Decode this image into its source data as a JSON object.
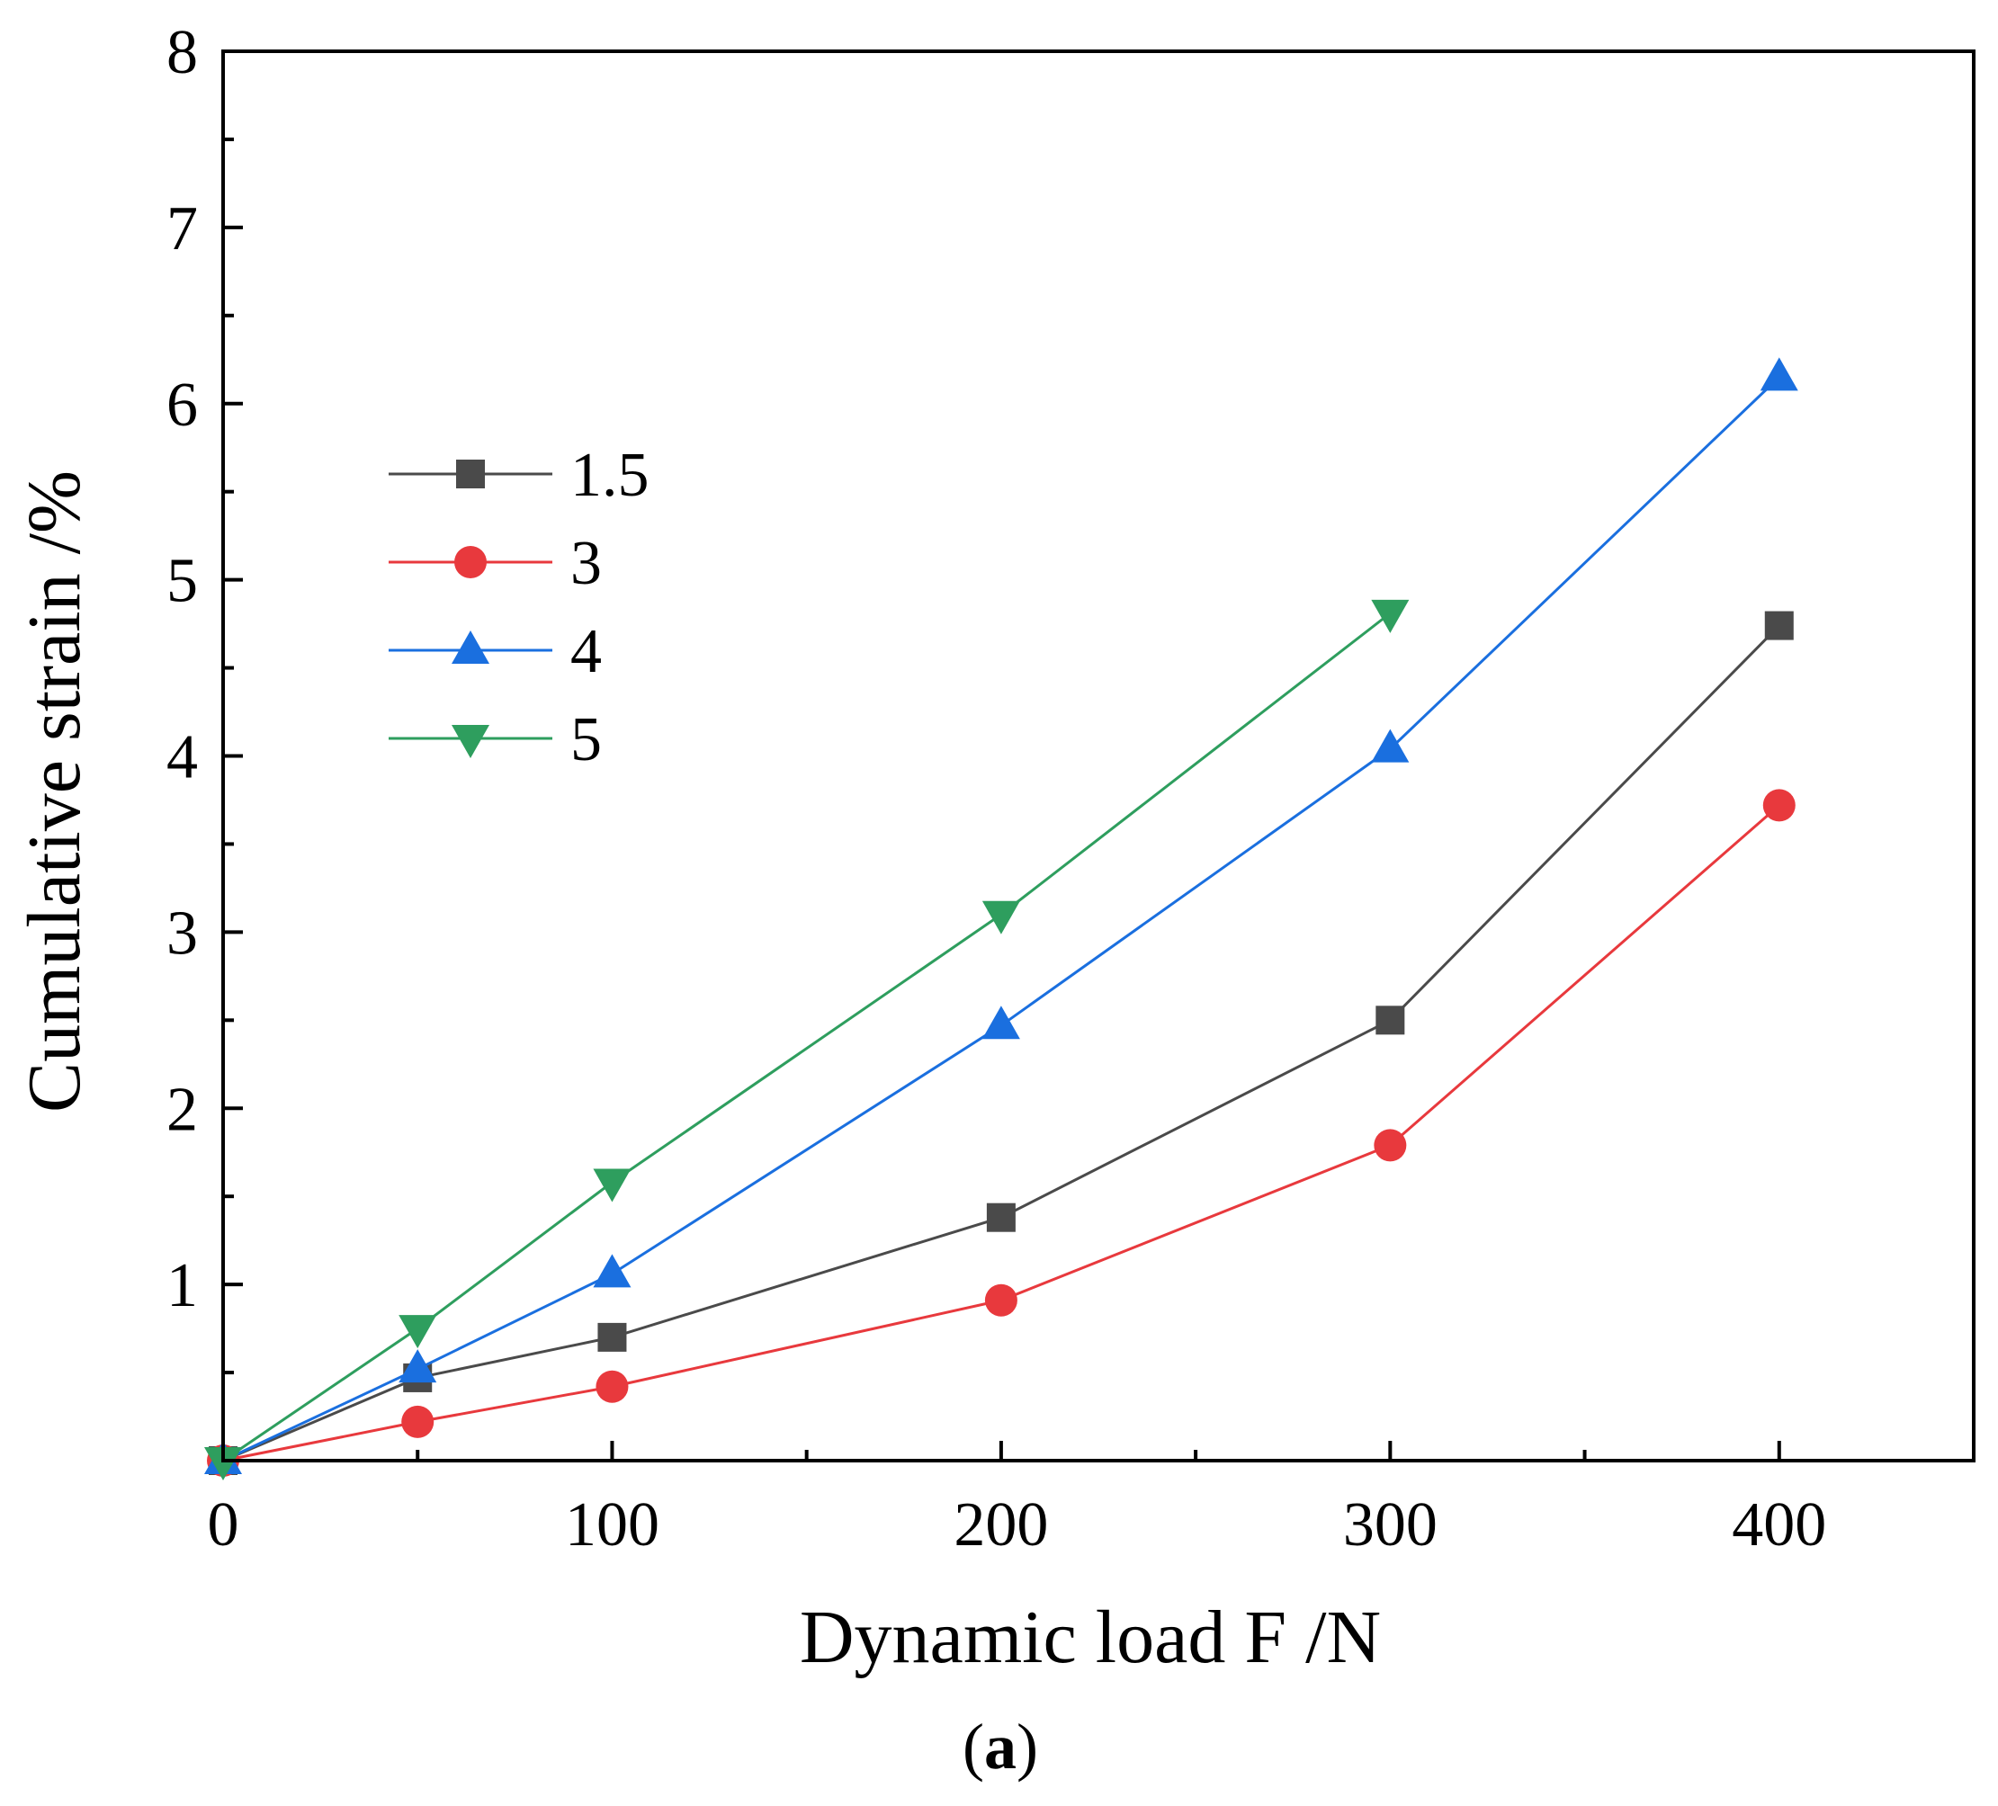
{
  "chart_data": {
    "type": "line",
    "title": "",
    "xlabel": "Dynamic load F /N",
    "ylabel": "Cumulative strain /%",
    "caption_paren_open": "(",
    "caption_letter": "a",
    "caption_paren_close": ")",
    "xlim": [
      0,
      450
    ],
    "ylim": [
      0,
      8
    ],
    "xticks": [
      0,
      100,
      200,
      300,
      400
    ],
    "xtick_labels": [
      "0",
      "100",
      "200",
      "300",
      "400"
    ],
    "yticks": [
      1,
      2,
      3,
      4,
      5,
      6,
      7,
      8
    ],
    "ytick_labels": [
      "1",
      "2",
      "3",
      "4",
      "5",
      "6",
      "7",
      "8"
    ],
    "grid": false,
    "legend_position": "upper-left",
    "series": [
      {
        "name": "1.5",
        "color": "#4a4a4a",
        "marker": "square",
        "x": [
          0,
          50,
          100,
          200,
          300,
          400
        ],
        "y": [
          0,
          0.47,
          0.7,
          1.38,
          2.5,
          4.74
        ]
      },
      {
        "name": "3",
        "color": "#e8393d",
        "marker": "circle",
        "x": [
          0,
          50,
          100,
          200,
          300,
          400
        ],
        "y": [
          0,
          0.22,
          0.42,
          0.91,
          1.79,
          3.72
        ]
      },
      {
        "name": "4",
        "color": "#1a6fdf",
        "marker": "triangle-up",
        "x": [
          0,
          50,
          100,
          200,
          300,
          400
        ],
        "y": [
          0,
          0.52,
          1.06,
          2.47,
          4.04,
          6.15
        ]
      },
      {
        "name": "5",
        "color": "#2e9e5e",
        "marker": "triangle-down",
        "x": [
          0,
          50,
          100,
          200,
          300
        ],
        "y": [
          0,
          0.75,
          1.58,
          3.1,
          4.81
        ]
      }
    ]
  }
}
